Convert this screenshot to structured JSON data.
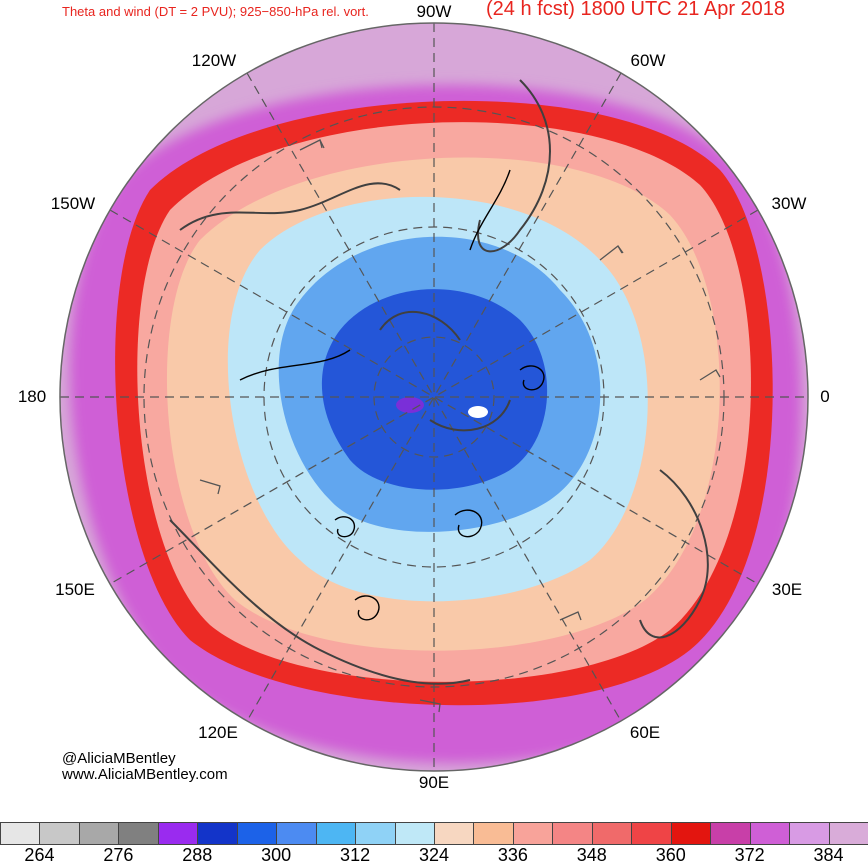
{
  "header": {
    "left_title": "Theta and wind (DT = 2 PVU); 925−850-hPa rel. vort.",
    "right_title": "(24 h fcst) 1800 UTC 21 Apr 2018"
  },
  "longitude_labels": {
    "n90w": "90W",
    "w60w": "60W",
    "w120w": "120W",
    "w150w": "150W",
    "w30w": "30W",
    "w180": "180",
    "w0": "0",
    "e150e": "150E",
    "e30e": "30E",
    "e120e": "120E",
    "e60e": "60E",
    "s90e": "90E"
  },
  "credits": {
    "handle": "@AliciaMBentley",
    "website": "www.AliciaMBentley.com"
  },
  "colorbar": {
    "colors": [
      "#e6e6e6",
      "#c8c8c8",
      "#a8a8a8",
      "#808080",
      "#9a2bef",
      "#1334c9",
      "#1c62e8",
      "#4c8bf2",
      "#4db6f3",
      "#8fd2f6",
      "#bfe8f7",
      "#f7d7c1",
      "#f9bc95",
      "#f8a39a",
      "#f48585",
      "#f06a6a",
      "#ef4446",
      "#e3150f",
      "#c83fa8",
      "#cf5fd6",
      "#d89be4",
      "#d9acd9"
    ],
    "tick_labels": [
      "264",
      "276",
      "288",
      "300",
      "312",
      "324",
      "336",
      "348",
      "360",
      "372",
      "384"
    ]
  },
  "map": {
    "outer_color": "#d7a7d8",
    "ring_red": "#ec2a25",
    "warm_salmon": "#f8a8a0",
    "peach": "#f9c9a9",
    "light_blue": "#bde6f8",
    "mid_blue": "#61a6ef",
    "deep_blue": "#2456d8",
    "grid_color": "#555555",
    "coast_color": "#404040"
  }
}
